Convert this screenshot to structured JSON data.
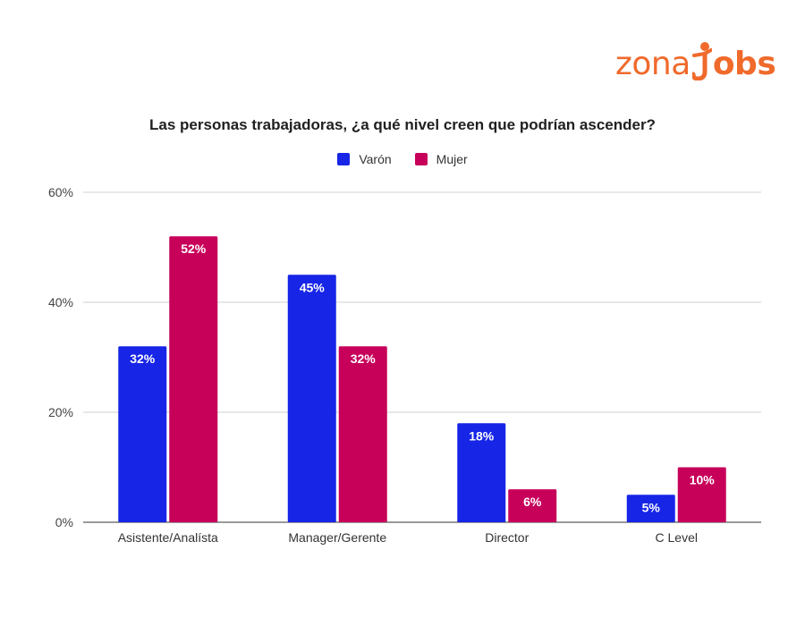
{
  "brand": {
    "logo_part1": "zona",
    "logo_part2": "obs",
    "color": "#f06a2b"
  },
  "chart_data": {
    "type": "bar",
    "title": "Las personas trabajadoras, ¿a qué nivel creen que podrían ascender?",
    "categories": [
      "Asistente/Analísta",
      "Manager/Gerente",
      "Director",
      "C Level"
    ],
    "series": [
      {
        "name": "Varón",
        "color": "#1625e6",
        "values": [
          32,
          45,
          18,
          5
        ]
      },
      {
        "name": "Mujer",
        "color": "#c7005a",
        "values": [
          52,
          32,
          6,
          10
        ]
      }
    ],
    "ylim": [
      0,
      60
    ],
    "yticks": [
      0,
      20,
      40,
      60
    ],
    "ytick_labels": [
      "0%",
      "20%",
      "40%",
      "60%"
    ],
    "value_suffix": "%",
    "xlabel": "",
    "ylabel": "",
    "legend": "top-center",
    "grid": true
  }
}
